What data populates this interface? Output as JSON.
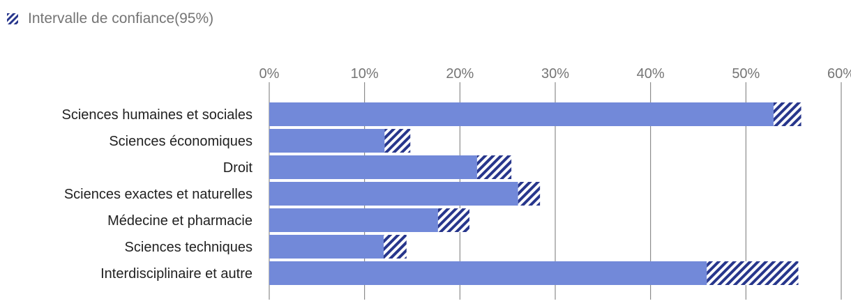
{
  "legend": {
    "label": "Intervalle de confiance(95%)"
  },
  "colors": {
    "bar": "#7289d9",
    "ci": "#27368c",
    "grid": "#757575"
  },
  "chart_data": {
    "type": "bar",
    "orientation": "horizontal",
    "title": "",
    "xlabel": "",
    "ylabel": "",
    "xlim": [
      0,
      60
    ],
    "ticks": [
      0,
      10,
      20,
      30,
      40,
      50,
      60
    ],
    "tick_labels": [
      "0%",
      "10%",
      "20%",
      "30%",
      "40%",
      "50%",
      "60%"
    ],
    "grid": true,
    "legend_position": "top-left",
    "categories": [
      "Sciences humaines et sociales",
      "Sciences économiques",
      "Droit",
      "Sciences exactes et naturelles",
      "Médecine et pharmacie",
      "Sciences techniques",
      "Interdisciplinaire et autre"
    ],
    "values": [
      54.4,
      13.4,
      23.6,
      27.2,
      19.4,
      13.2,
      50.7
    ],
    "ci_low": [
      52.9,
      12.1,
      21.8,
      26.1,
      17.7,
      12.0,
      45.9
    ],
    "ci_high": [
      55.8,
      14.8,
      25.4,
      28.4,
      21.0,
      14.4,
      55.5
    ]
  }
}
